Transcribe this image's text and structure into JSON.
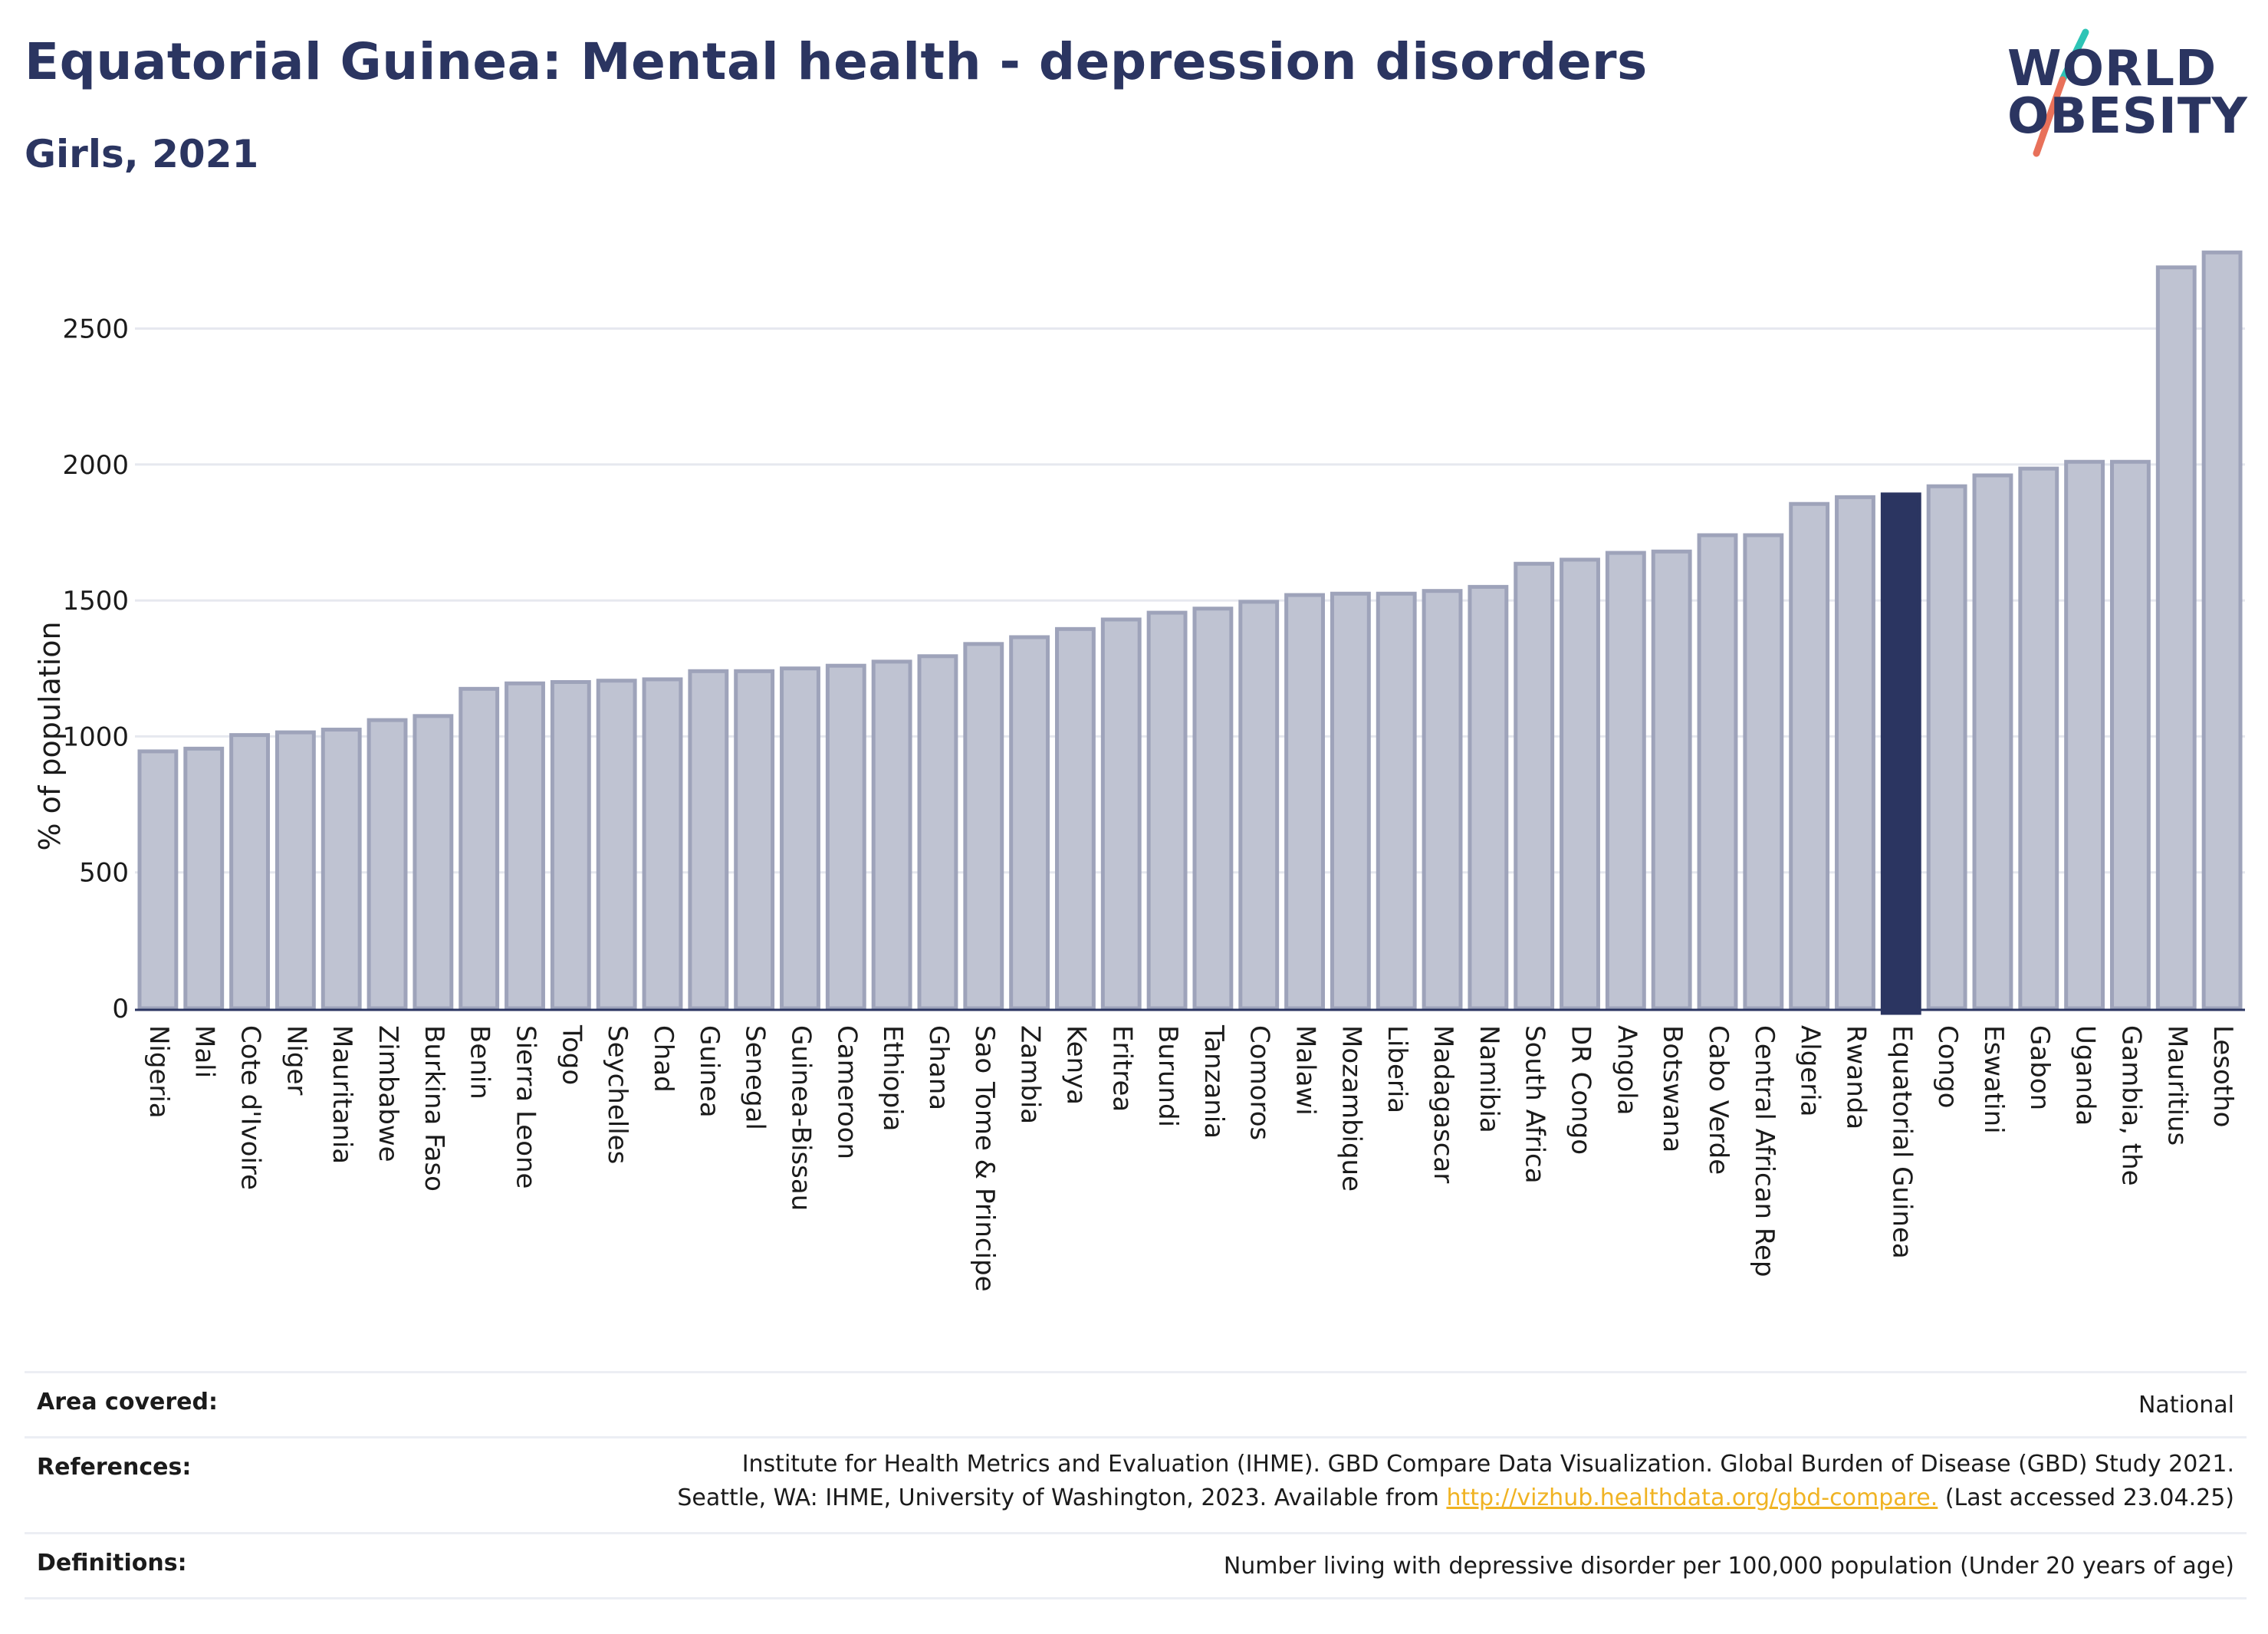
{
  "header": {
    "title": "Equatorial Guinea: Mental health - depression disorders",
    "subtitle": "Girls, 2021"
  },
  "logo": {
    "line1": "WORLD",
    "line2": "OBESITY",
    "colors": {
      "text": "#2b3561",
      "slash_top": "#2ec4b6",
      "slash_bottom": "#e8715a"
    }
  },
  "chart_data": {
    "type": "bar",
    "ylabel": "% of population",
    "ylim": [
      0,
      2800
    ],
    "yticks": [
      0,
      500,
      1000,
      1500,
      2000,
      2500
    ],
    "grid": true,
    "highlight": "Equatorial Guinea",
    "colors": {
      "bar": "#bfc3d2",
      "bar_border": "#9ea3ba",
      "highlight": "#2b3561",
      "grid": "#e6e8ef"
    },
    "categories": [
      "Nigeria",
      "Mali",
      "Cote d'Ivoire",
      "Niger",
      "Mauritania",
      "Zimbabwe",
      "Burkina Faso",
      "Benin",
      "Sierra Leone",
      "Togo",
      "Seychelles",
      "Chad",
      "Guinea",
      "Senegal",
      "Guinea-Bissau",
      "Cameroon",
      "Ethiopia",
      "Ghana",
      "Sao Tome & Principe",
      "Zambia",
      "Kenya",
      "Eritrea",
      "Burundi",
      "Tanzania",
      "Comoros",
      "Malawi",
      "Mozambique",
      "Liberia",
      "Madagascar",
      "Namibia",
      "South Africa",
      "DR Congo",
      "Angola",
      "Botswana",
      "Cabo Verde",
      "Central African Rep",
      "Algeria",
      "Rwanda",
      "Equatorial Guinea",
      "Congo",
      "Eswatini",
      "Gabon",
      "Uganda",
      "Gambia, the",
      "Mauritius",
      "Lesotho"
    ],
    "values": [
      945,
      955,
      1005,
      1015,
      1025,
      1060,
      1075,
      1175,
      1195,
      1200,
      1205,
      1210,
      1240,
      1240,
      1250,
      1260,
      1275,
      1295,
      1340,
      1365,
      1395,
      1430,
      1455,
      1470,
      1495,
      1520,
      1525,
      1525,
      1535,
      1550,
      1635,
      1650,
      1675,
      1680,
      1740,
      1740,
      1855,
      1880,
      1890,
      1920,
      1960,
      1985,
      2010,
      2010,
      2725,
      2780
    ]
  },
  "footer": {
    "area_label": "Area covered:",
    "area_value": "National",
    "refs_label": "References:",
    "refs_line1": "Institute for Health Metrics and Evaluation (IHME). GBD Compare Data Visualization. Global Burden of Disease (GBD) Study 2021.",
    "refs_line2_pre": "Seattle, WA: IHME, University of Washington, 2023. Available from ",
    "refs_link": "http://vizhub.healthdata.org/gbd-compare.",
    "refs_line2_post": " (Last accessed 23.04.25)",
    "defs_label": "Definitions:",
    "defs_value": "Number living with depressive disorder per 100,000 population (Under 20 years of age)"
  }
}
